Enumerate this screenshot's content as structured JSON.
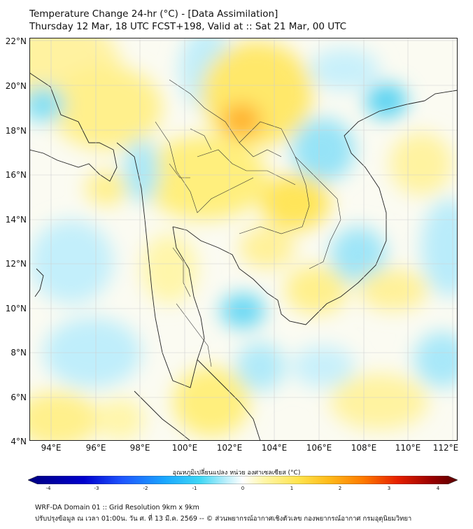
{
  "title": {
    "line1": "Temperature Change 24-hr (°C) - [Data Assimilation]",
    "line2": "Thursday 12 Mar, 18 UTC FCST+198, Valid at :: Sat 21 Mar, 00 UTC"
  },
  "map": {
    "lat_labels": [
      "22°N",
      "20°N",
      "18°N",
      "16°N",
      "14°N",
      "12°N",
      "10°N",
      "8°N",
      "6°N",
      "4°N"
    ],
    "lon_labels": [
      "94°E",
      "96°E",
      "98°E",
      "100°E",
      "102°E",
      "104°E",
      "106°E",
      "108°E",
      "110°E",
      "112°E"
    ],
    "lat_range": [
      4,
      22
    ],
    "lon_range": [
      93,
      112.2
    ],
    "field": "temperature change 24-hr"
  },
  "colorbar": {
    "label": "อุณหภูมิเปลี่ยนแปลง หน่วย องศาเซลเซียส (°C)",
    "ticks": [
      "-4",
      "-3",
      "-2",
      "-1",
      "0",
      "1",
      "2",
      "3",
      "4"
    ],
    "range": [
      -4,
      4
    ],
    "colors": [
      "#000080",
      "#0000cd",
      "#1e56ff",
      "#1aa8ff",
      "#3fd7f5",
      "#b9eefb",
      "#ffffff",
      "#fff6a8",
      "#ffe34d",
      "#ffbb1a",
      "#ff7a00",
      "#e62000",
      "#990000",
      "#5a0000"
    ]
  },
  "footer": {
    "line1": "WRF-DA Domain 01 :: Grid Resolution 9km x 9km",
    "line2": "ปรับปรุงข้อมูล ณ เวลา 01:00น. วัน ศ. ที่ 13 มี.ค. 2569 -- © ส่วนพยากรณ์อากาศเชิงตัวเลข กองพยากรณ์อากาศ กรมอุตุนิยมวิทยา"
  }
}
